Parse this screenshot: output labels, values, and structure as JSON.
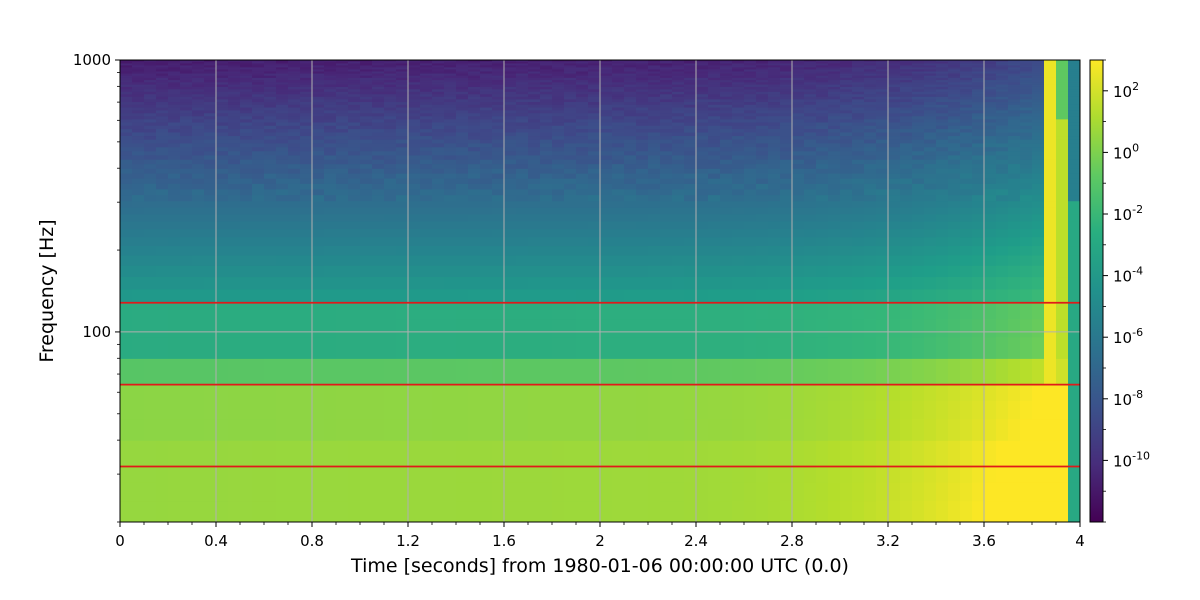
{
  "chart_data": {
    "type": "heatmap",
    "title": "",
    "xlabel": "Time [seconds] from 1980-01-06 00:00:00 UTC (0.0)",
    "ylabel": "Frequency [Hz]",
    "xlim": [
      0,
      4
    ],
    "ylim": [
      20,
      1000
    ],
    "yscale": "log",
    "x_ticks": [
      0,
      0.4,
      0.8,
      1.2,
      1.6,
      2,
      2.4,
      2.8,
      3.2,
      3.6,
      4
    ],
    "x_tick_labels": [
      "0",
      "0.4",
      "0.8",
      "1.2",
      "1.6",
      "2",
      "2.4",
      "2.8",
      "3.2",
      "3.6",
      "4"
    ],
    "y_ticks": [
      100,
      1000
    ],
    "y_tick_labels": [
      "100",
      "1000"
    ],
    "grid": true,
    "horizontal_lines": {
      "color": "#e0191a",
      "values": [
        128,
        64,
        32
      ]
    },
    "colorbar": {
      "scale": "log",
      "colormap": "viridis",
      "range": [
        1e-12,
        1000.0
      ],
      "ticks": [
        2,
        0,
        -2,
        -4,
        -6,
        -8,
        -10
      ],
      "tick_labels": [
        "10^2",
        "10^0",
        "10^-2",
        "10^-4",
        "10^-6",
        "10^-8",
        "10^-10"
      ]
    }
  }
}
